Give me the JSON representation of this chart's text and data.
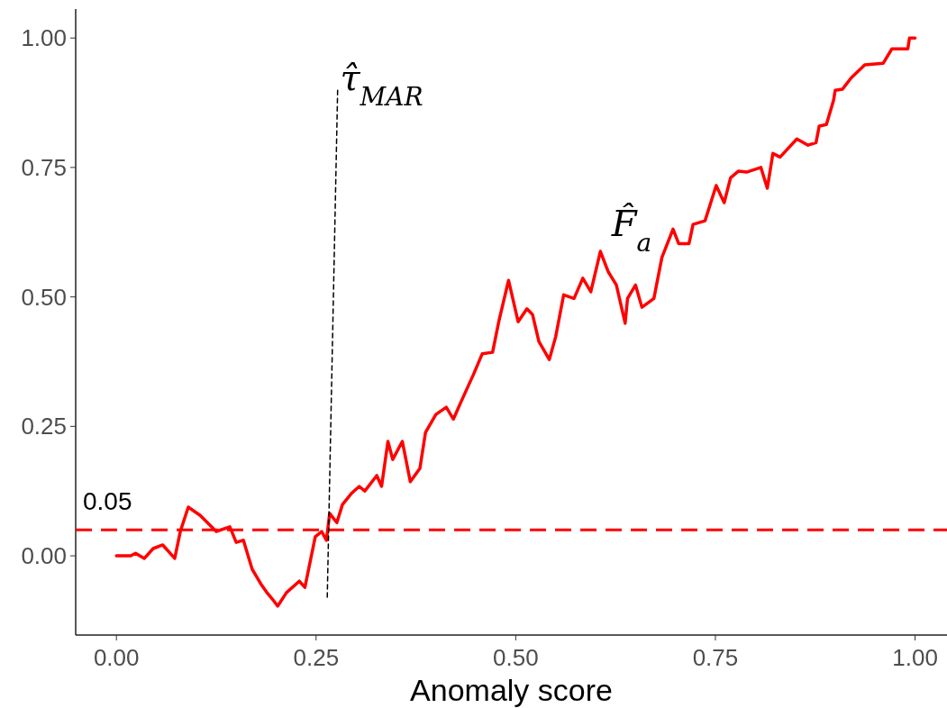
{
  "chart_data": {
    "type": "line",
    "xlabel": "Anomaly score",
    "xlim": [
      -0.051,
      1.04
    ],
    "ylim": [
      -0.153,
      1.056
    ],
    "xticks": [
      {
        "value": 0,
        "label": "0.00"
      },
      {
        "value": 0.25,
        "label": "0.25"
      },
      {
        "value": 0.5,
        "label": "0.50"
      },
      {
        "value": 0.75,
        "label": "0.75"
      },
      {
        "value": 1,
        "label": "1.00"
      }
    ],
    "yticks": [
      {
        "value": 0,
        "label": "0.00"
      },
      {
        "value": 0.25,
        "label": "0.25"
      },
      {
        "value": 0.5,
        "label": "0.50"
      },
      {
        "value": 0.75,
        "label": "0.75"
      },
      {
        "value": 1,
        "label": "1.00"
      }
    ],
    "grid": false,
    "series": [
      {
        "color": "#ff0000",
        "line_style": "solid",
        "x": [
          0,
          0.018,
          0.024,
          0.035,
          0.046,
          0.058,
          0.073,
          0.08,
          0.09,
          0.105,
          0.114,
          0.125,
          0.142,
          0.15,
          0.159,
          0.17,
          0.182,
          0.188,
          0.195,
          0.202,
          0.213,
          0.229,
          0.236,
          0.249,
          0.257,
          0.263,
          0.267,
          0.276,
          0.283,
          0.294,
          0.304,
          0.311,
          0.326,
          0.332,
          0.34,
          0.346,
          0.358,
          0.368,
          0.38,
          0.387,
          0.4,
          0.413,
          0.422,
          0.432,
          0.447,
          0.458,
          0.471,
          0.479,
          0.491,
          0.503,
          0.514,
          0.521,
          0.529,
          0.542,
          0.55,
          0.56,
          0.573,
          0.584,
          0.594,
          0.606,
          0.616,
          0.626,
          0.637,
          0.64,
          0.65,
          0.658,
          0.673,
          0.683,
          0.697,
          0.704,
          0.717,
          0.722,
          0.737,
          0.751,
          0.761,
          0.769,
          0.779,
          0.789,
          0.807,
          0.815,
          0.822,
          0.831,
          0.852,
          0.866,
          0.876,
          0.88,
          0.889,
          0.898,
          0.9,
          0.909,
          0.92,
          0.937,
          0.96,
          0.971,
          0.991,
          0.993,
          1.0
        ],
        "values": [
          0,
          0,
          0.005,
          -0.005,
          0.014,
          0.021,
          -0.005,
          0.047,
          0.094,
          0.078,
          0.064,
          0.047,
          0.056,
          0.026,
          0.03,
          -0.026,
          -0.057,
          -0.07,
          -0.083,
          -0.097,
          -0.071,
          -0.049,
          -0.061,
          0.037,
          0.047,
          0.03,
          0.082,
          0.064,
          0.099,
          0.12,
          0.134,
          0.125,
          0.155,
          0.134,
          0.221,
          0.186,
          0.221,
          0.143,
          0.169,
          0.238,
          0.273,
          0.287,
          0.264,
          0.299,
          0.35,
          0.39,
          0.393,
          0.454,
          0.532,
          0.452,
          0.477,
          0.466,
          0.414,
          0.379,
          0.423,
          0.504,
          0.497,
          0.536,
          0.51,
          0.588,
          0.548,
          0.523,
          0.449,
          0.497,
          0.523,
          0.48,
          0.497,
          0.576,
          0.631,
          0.603,
          0.603,
          0.64,
          0.647,
          0.715,
          0.682,
          0.73,
          0.743,
          0.741,
          0.75,
          0.71,
          0.777,
          0.77,
          0.805,
          0.793,
          0.798,
          0.83,
          0.833,
          0.88,
          0.899,
          0.901,
          0.923,
          0.948,
          0.951,
          0.979,
          0.979,
          1.0,
          1.0
        ]
      },
      {
        "color": "#000000",
        "line_style": "dashed",
        "x": [
          0.264,
          0.277
        ],
        "values": [
          -0.08,
          0.9
        ]
      }
    ],
    "ref_lines": [
      {
        "axis": "y",
        "value": 0.05,
        "label": "0.05",
        "color": "#ff0000",
        "line_style": "dashed"
      }
    ],
    "annotations": [
      {
        "text": "τ̂$_{MAR}$",
        "x": 0.28,
        "y": 0.9
      },
      "F̂$_{a}$"
    ]
  }
}
